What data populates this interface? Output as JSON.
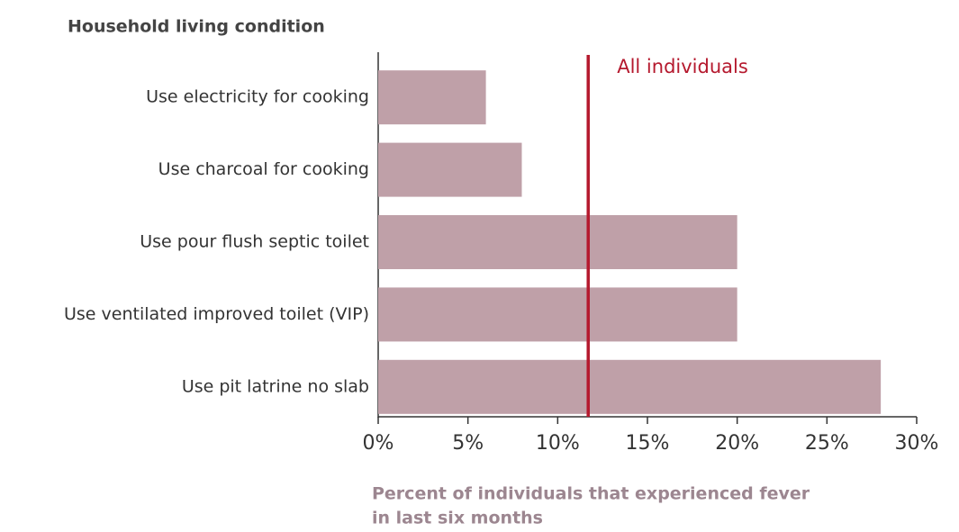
{
  "chart_data": {
    "type": "bar",
    "orientation": "horizontal",
    "title": "Household living condition",
    "xlabel": [
      "Percent of individuals that experienced fever",
      "in last six months"
    ],
    "categories": [
      "Use electricity for cooking",
      "Use charcoal for cooking",
      "Use pour flush septic toilet",
      "Use ventilated improved toilet (VIP)",
      "Use pit latrine no slab"
    ],
    "values": [
      6,
      8,
      20,
      20,
      28
    ],
    "color": "#bfa0a8",
    "reference": {
      "label": "All individuals",
      "value": 11.7,
      "color": "#b5192e"
    },
    "xlim": [
      0,
      30
    ],
    "xticks": [
      {
        "value": 0,
        "label": "0%"
      },
      {
        "value": 5,
        "label": "5%"
      },
      {
        "value": 10,
        "label": "10%"
      },
      {
        "value": 15,
        "label": "15%"
      },
      {
        "value": 20,
        "label": "20%"
      },
      {
        "value": 25,
        "label": "25%"
      },
      {
        "value": 30,
        "label": "30%"
      }
    ]
  }
}
